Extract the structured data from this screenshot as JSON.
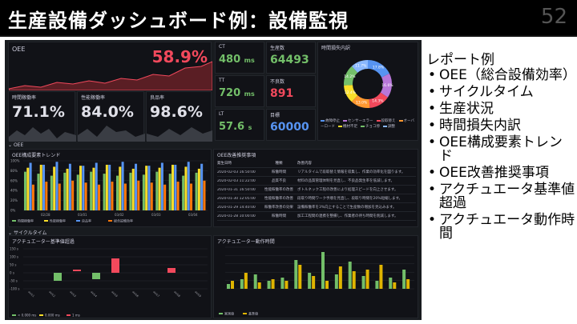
{
  "slide": {
    "title": "生産設備ダッシュボード例：設備監視",
    "number": "52"
  },
  "bullets": {
    "title": "レポート例",
    "items": [
      "OEE（総合設備効率）",
      "サイクルタイム",
      "生産状況",
      "時間損失内訳",
      "OEE構成要素トレンド",
      "OEE改善推奨事項",
      "アクチュエータ基準値超過",
      "アクチュエータ動作時間"
    ]
  },
  "dashboard": {
    "oee": {
      "label": "OEE",
      "value": "58.9%",
      "color": "#f2495c"
    },
    "availability": {
      "label": "時間稼働率",
      "value": "71.1%"
    },
    "performance": {
      "label": "性能稼働率",
      "value": "84.0%"
    },
    "quality": {
      "label": "良品率",
      "value": "98.6%"
    },
    "ct": {
      "label": "CT",
      "value": "480",
      "unit": "ms",
      "color": "#73bf69"
    },
    "tt": {
      "label": "TT",
      "value": "720",
      "unit": "ms",
      "color": "#73bf69"
    },
    "lt": {
      "label": "LT",
      "value": "57.6",
      "unit": "s",
      "color": "#73bf69"
    },
    "production": {
      "label": "生産数",
      "value": "64493",
      "color": "#73bf69"
    },
    "defects": {
      "label": "不良数",
      "value": "891",
      "color": "#f2495c"
    },
    "target": {
      "label": "目標",
      "value": "60000",
      "color": "#5794f2"
    },
    "donut": {
      "title": "時間損失内訳",
      "legend": [
        "故障停止",
        "センサーエラー",
        "段取替え",
        "オーバーロード",
        "機材不足",
        "チョコ停",
        "調整"
      ],
      "slices": [
        {
          "label": "17.8%",
          "value": 17.8,
          "color": "#5794f2"
        },
        {
          "label": "16.6%",
          "value": 16.6,
          "color": "#b877d9"
        },
        {
          "label": "14.3%",
          "value": 14.3,
          "color": "#f2495c"
        },
        {
          "label": "13.0%",
          "value": 13.0,
          "color": "#ff9830"
        },
        {
          "label": "12.4%",
          "value": 12.4,
          "color": "#fade2a"
        },
        {
          "label": "14.2%",
          "value": 14.2,
          "color": "#73bf69"
        },
        {
          "label": "11.7%",
          "value": 11.7,
          "color": "#8ab8ff"
        }
      ]
    },
    "section1": "OEE",
    "trend": {
      "title": "OEE構成要素トレンド",
      "yticks": [
        "100%",
        "80%",
        "60%",
        "40%",
        "20%",
        "0%"
      ],
      "xticks": [
        "02/28",
        "03/01",
        "03/02",
        "03/03",
        "03/04"
      ],
      "legend": [
        "時間稼働率",
        "性能稼働率",
        "良品率",
        "総合設備効率"
      ],
      "colors": [
        "#73bf69",
        "#fade2a",
        "#5794f2",
        "#ff780a"
      ]
    },
    "reco": {
      "title": "OEE改善推奨事項",
      "headers": [
        "発生日時",
        "種類",
        "改善内容"
      ],
      "rows": [
        [
          "2020-02-03 16:50:00",
          "稼働時間",
          "リアルタイムで段取替え情報を収集し、作業の効率化を図ります。"
        ],
        [
          "2020-02-03 11:22:00",
          "品質不良",
          "材料の品質管理体制を見直し、不良品発生率を低減します。"
        ],
        [
          "2020-01-31 16:50:00",
          "性能稼働率の改善",
          "ボトルネック工程の改善により処理スピードを向上させます。"
        ],
        [
          "2020-01-30 12:05:00",
          "性能稼働率の改善",
          "段取り時間ワーク手順を見直し、段取り時間を20%短縮します。"
        ],
        [
          "2020-01-29 14:40:00",
          "稼働率改善の効果",
          "設備稼働率を3%向上することで生産数の増加を見込みます。"
        ],
        [
          "2020-01-28 10:00:00",
          "稼働時間",
          "加工工程間の連携を整備し、作業者の待ち時間を削減します。"
        ]
      ]
    },
    "section2": "サイクルタイム",
    "act1": {
      "title": "アクチュエーター基準値超過",
      "yticks": [
        "150 s",
        "100 s",
        "50 s",
        "0 s",
        "-50 s",
        "-100 s"
      ],
      "legend": [
        "< 0.000 ms",
        "0.000 ms",
        "1 ms"
      ]
    },
    "act2": {
      "title": "アクチュエーター動作時間",
      "legend": [
        "実測値",
        "基準値"
      ]
    }
  }
}
